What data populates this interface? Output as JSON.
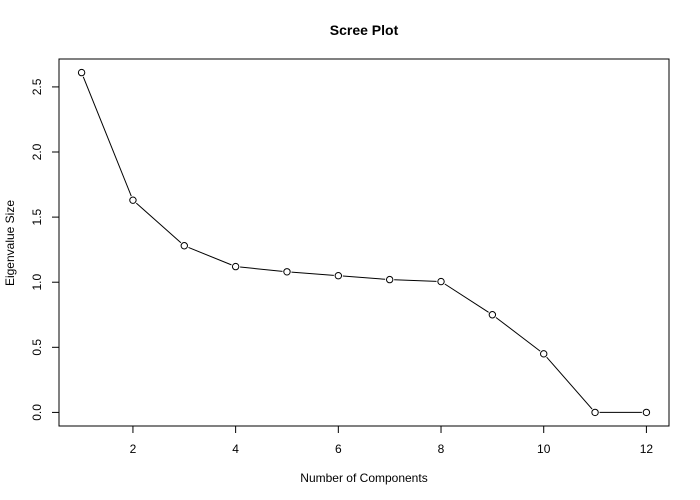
{
  "chart_data": {
    "type": "line",
    "title": "Scree Plot",
    "xlabel": "Number of Components",
    "ylabel": "Eigenvalue Size",
    "x": [
      1,
      2,
      3,
      4,
      5,
      6,
      7,
      8,
      9,
      10,
      11,
      12
    ],
    "series": [
      {
        "values": [
          2.61,
          1.63,
          1.28,
          1.12,
          1.08,
          1.05,
          1.02,
          1.005,
          0.75,
          0.45,
          0.0,
          0.0
        ]
      }
    ],
    "xlim": [
      0.56,
      12.44
    ],
    "ylim": [
      -0.1044,
      2.7144
    ],
    "xticks": [
      "2",
      "4",
      "6",
      "8",
      "10",
      "12"
    ],
    "yticks": [
      "0.0",
      "0.5",
      "1.0",
      "1.5",
      "2.0",
      "2.5"
    ],
    "marker": "open-circle",
    "line_color": "#000000",
    "grid": false,
    "legend": "none"
  }
}
